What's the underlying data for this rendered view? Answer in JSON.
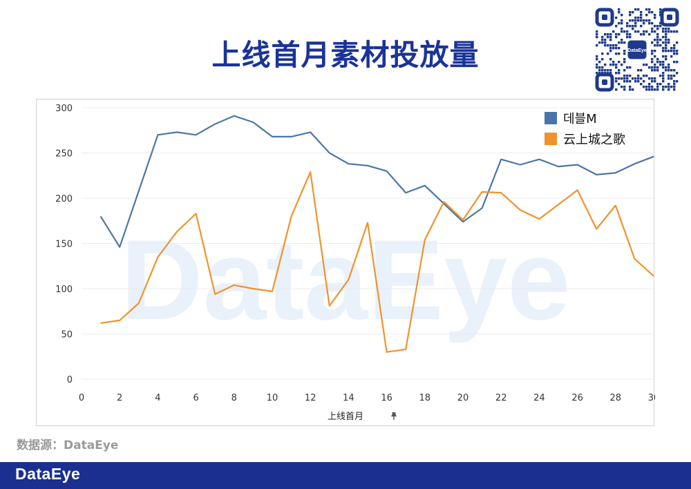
{
  "page": {
    "title": "上线首月素材投放量",
    "source": "数据源：DataEye",
    "footer_logo": "DataEye",
    "qr_badge": "DataEye",
    "watermark": "DataEye",
    "accent_color": "#1a3399",
    "footer_color": "#1a2f8f"
  },
  "chart_data": {
    "type": "line",
    "xlabel": "上线首月",
    "xlabel_icon": "pin-icon",
    "xlim": [
      0,
      30
    ],
    "ylim": [
      0,
      300
    ],
    "x_ticks": [
      0,
      2,
      4,
      6,
      8,
      10,
      12,
      14,
      16,
      18,
      20,
      22,
      24,
      26,
      28,
      30
    ],
    "y_ticks": [
      0,
      50,
      100,
      150,
      200,
      250,
      300
    ],
    "legend_position": "top-right",
    "grid": true,
    "x": [
      1,
      2,
      3,
      4,
      5,
      6,
      7,
      8,
      9,
      10,
      11,
      12,
      13,
      14,
      15,
      16,
      17,
      18,
      19,
      20,
      21,
      22,
      23,
      24,
      25,
      26,
      27,
      28,
      29,
      30
    ],
    "series": [
      {
        "name": "데블M",
        "color": "#4a75a8",
        "values": [
          180,
          146,
          208,
          270,
          273,
          270,
          282,
          291,
          284,
          268,
          268,
          273,
          250,
          238,
          236,
          230,
          206,
          214,
          194,
          174,
          189,
          243,
          237,
          243,
          235,
          237,
          226,
          228,
          238,
          246
        ]
      },
      {
        "name": "云上城之歌",
        "color": "#f0922b",
        "values": [
          62,
          65,
          84,
          135,
          163,
          183,
          94,
          104,
          100,
          97,
          180,
          229,
          81,
          110,
          173,
          30,
          33,
          154,
          196,
          176,
          207,
          206,
          187,
          177,
          193,
          209,
          166,
          192,
          133,
          114
        ]
      }
    ]
  }
}
